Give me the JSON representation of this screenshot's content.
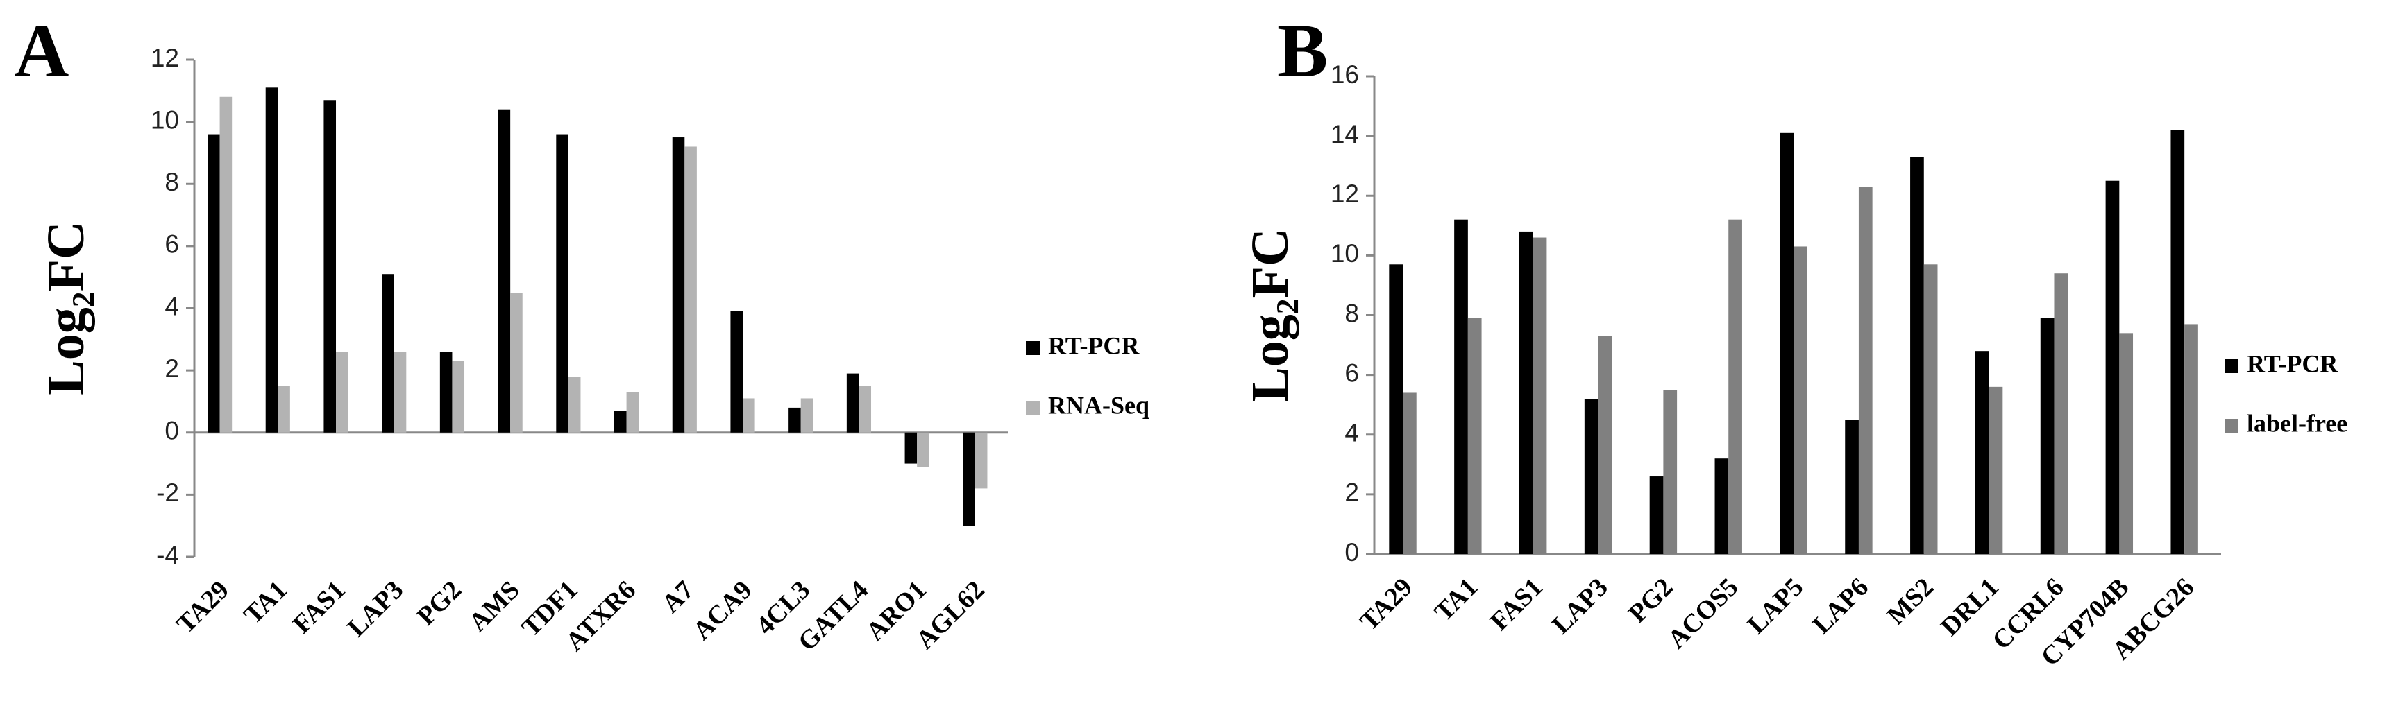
{
  "chart_data": [
    {
      "type": "bar",
      "label": "A",
      "y_label": "Log₂FC",
      "categories": [
        "TA29",
        "TA1",
        "FAS1",
        "LAP3",
        "PG2",
        "AMS",
        "TDF1",
        "ATXR6",
        "A7",
        "ACA9",
        "4CL3",
        "GATL4",
        "ARO1",
        "AGL62"
      ],
      "series": [
        {
          "name": "RT-PCR",
          "color": "#000000",
          "values": [
            9.6,
            11.1,
            10.7,
            5.1,
            2.6,
            10.4,
            9.6,
            0.7,
            9.5,
            3.9,
            0.8,
            1.9,
            -1.0,
            -3.0
          ]
        },
        {
          "name": "RNA-Seq",
          "color": "#b3b3b3",
          "values": [
            10.8,
            1.5,
            2.6,
            2.6,
            2.3,
            4.5,
            1.8,
            1.3,
            9.2,
            1.1,
            1.1,
            1.5,
            -1.1,
            -1.8
          ]
        }
      ],
      "ylim": [
        -4,
        12
      ],
      "yticks": [
        -4,
        -2,
        0,
        2,
        4,
        6,
        8,
        10,
        12
      ],
      "grid": false,
      "legend": "right"
    },
    {
      "type": "bar",
      "label": "B",
      "y_label": "Log₂FC",
      "categories": [
        "TA29",
        "TA1",
        "FAS1",
        "LAP3",
        "PG2",
        "ACOS5",
        "LAP5",
        "LAP6",
        "MS2",
        "DRL1",
        "CCRL6",
        "CYP704B",
        "ABCG26"
      ],
      "series": [
        {
          "name": "RT-PCR",
          "color": "#000000",
          "values": [
            9.7,
            11.2,
            10.8,
            5.2,
            2.6,
            3.2,
            14.1,
            4.5,
            13.3,
            6.8,
            7.9,
            12.5,
            14.2
          ]
        },
        {
          "name": "label-free",
          "color": "#808080",
          "values": [
            5.4,
            7.9,
            10.6,
            7.3,
            5.5,
            11.2,
            10.3,
            12.3,
            9.7,
            5.6,
            9.4,
            7.4,
            7.7
          ]
        }
      ],
      "ylim": [
        0,
        16
      ],
      "yticks": [
        0,
        2,
        4,
        6,
        8,
        10,
        12,
        14,
        16
      ],
      "grid": false,
      "legend": "right"
    }
  ]
}
